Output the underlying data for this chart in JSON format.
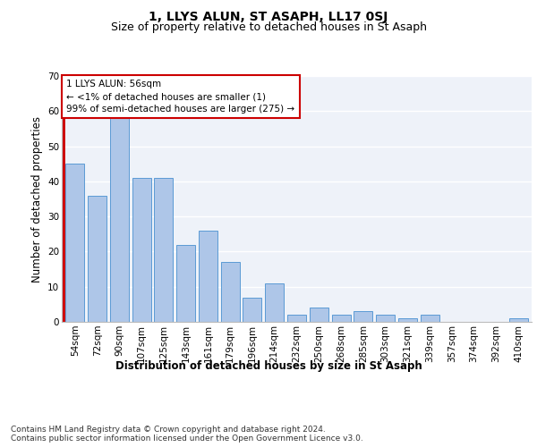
{
  "title": "1, LLYS ALUN, ST ASAPH, LL17 0SJ",
  "subtitle": "Size of property relative to detached houses in St Asaph",
  "xlabel": "Distribution of detached houses by size in St Asaph",
  "ylabel": "Number of detached properties",
  "categories": [
    "54sqm",
    "72sqm",
    "90sqm",
    "107sqm",
    "125sqm",
    "143sqm",
    "161sqm",
    "179sqm",
    "196sqm",
    "214sqm",
    "232sqm",
    "250sqm",
    "268sqm",
    "285sqm",
    "303sqm",
    "321sqm",
    "339sqm",
    "357sqm",
    "374sqm",
    "392sqm",
    "410sqm"
  ],
  "values": [
    45,
    36,
    59,
    41,
    41,
    22,
    26,
    17,
    7,
    11,
    2,
    4,
    2,
    3,
    2,
    1,
    2,
    0,
    0,
    0,
    1
  ],
  "bar_color": "#aec6e8",
  "bar_edge_color": "#5b9bd5",
  "highlight_color": "#cc0000",
  "annotation_text": "1 LLYS ALUN: 56sqm\n← <1% of detached houses are smaller (1)\n99% of semi-detached houses are larger (275) →",
  "annotation_box_color": "#ffffff",
  "annotation_box_edge_color": "#cc0000",
  "ylim": [
    0,
    70
  ],
  "yticks": [
    0,
    10,
    20,
    30,
    40,
    50,
    60,
    70
  ],
  "background_color": "#eef2f9",
  "footer_text": "Contains HM Land Registry data © Crown copyright and database right 2024.\nContains public sector information licensed under the Open Government Licence v3.0.",
  "title_fontsize": 10,
  "subtitle_fontsize": 9,
  "axis_label_fontsize": 8.5,
  "tick_fontsize": 7.5,
  "annotation_fontsize": 7.5,
  "footer_fontsize": 6.5
}
